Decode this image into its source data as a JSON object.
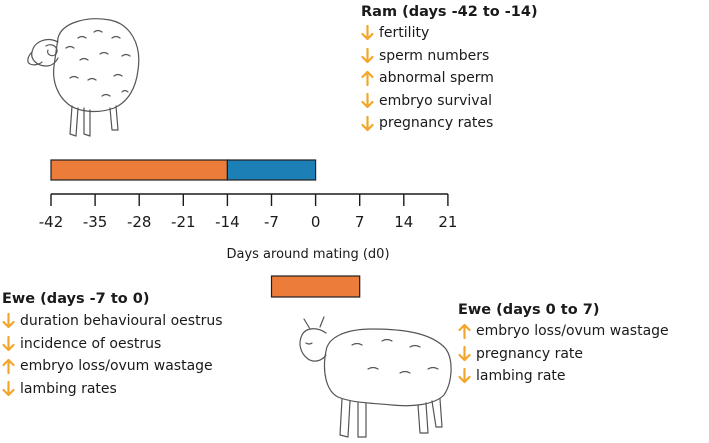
{
  "colors": {
    "bar_orange": "#EC7C3A",
    "bar_blue": "#1C7FB5",
    "arrow": "#F2A62B",
    "text": "#1a1a1a"
  },
  "ram": {
    "title": "Ram (days -42 to -14)",
    "effects": [
      {
        "direction": "down",
        "label": "fertility"
      },
      {
        "direction": "down",
        "label": "sperm numbers"
      },
      {
        "direction": "up",
        "label": "abnormal sperm"
      },
      {
        "direction": "down",
        "label": "embryo survival"
      },
      {
        "direction": "down",
        "label": "pregnancy rates"
      }
    ]
  },
  "ewe_before": {
    "title": "Ewe (days -7 to 0)",
    "effects": [
      {
        "direction": "down",
        "label": "duration behavioural oestrus"
      },
      {
        "direction": "down",
        "label": "incidence of oestrus"
      },
      {
        "direction": "up",
        "label": "embryo loss/ovum wastage"
      },
      {
        "direction": "down",
        "label": "lambing rates"
      }
    ]
  },
  "ewe_after": {
    "title": "Ewe (days 0 to 7)",
    "effects": [
      {
        "direction": "up",
        "label": "embryo loss/ovum wastage"
      },
      {
        "direction": "down",
        "label": "pregnancy rate"
      },
      {
        "direction": "down",
        "label": "lambing rate"
      }
    ]
  },
  "chart_data": {
    "type": "timeline",
    "xlabel": "Days around mating (d0)",
    "x_ticks": [
      -42,
      -35,
      -28,
      -21,
      -14,
      -7,
      0,
      7,
      14,
      21
    ],
    "tick_labels": [
      "-42",
      "-35",
      "-28",
      "-21",
      "-14",
      "-7",
      "0",
      "7",
      "14",
      "21"
    ],
    "xlim": [
      -42,
      21
    ],
    "periods": [
      {
        "start": -42,
        "end": -14,
        "color": "#EC7C3A",
        "row": "ram"
      },
      {
        "start": -14,
        "end": 0,
        "color": "#1C7FB5",
        "row": "ram"
      },
      {
        "start": -7,
        "end": 7,
        "color": "#EC7C3A",
        "row": "ewe"
      }
    ]
  },
  "icons": [
    "ram-illustration",
    "ewe-illustration",
    "down-arrow-icon",
    "up-arrow-icon"
  ]
}
